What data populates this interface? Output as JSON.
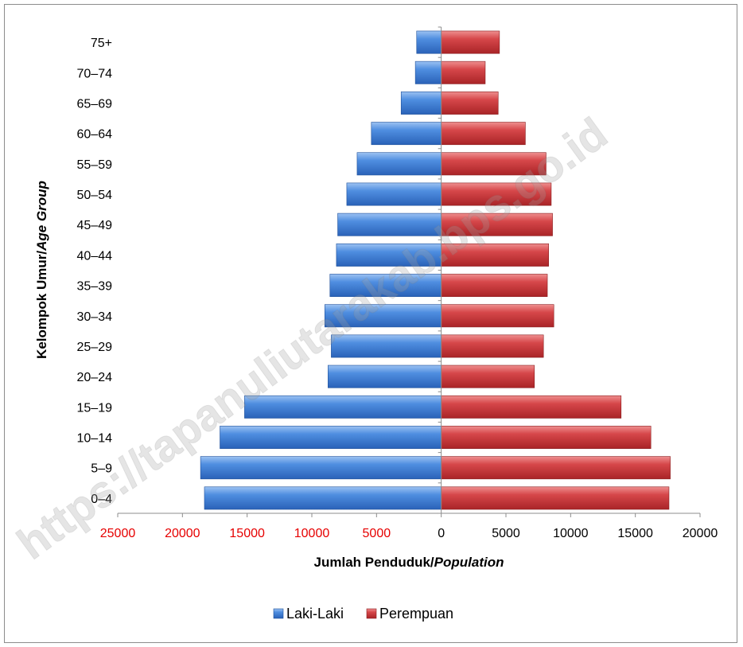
{
  "chart_data": {
    "type": "bar",
    "orientation": "horizontal-pyramid",
    "categories": [
      "0–4",
      "5–9",
      "10–14",
      "15–19",
      "20–24",
      "25–29",
      "30–34",
      "35–39",
      "40–44",
      "45–49",
      "50–54",
      "55–59",
      "60–64",
      "65–69",
      "70–74",
      "75+"
    ],
    "series": [
      {
        "name": "Laki-Laki",
        "color": "#3f7fd6",
        "values": [
          18300,
          18600,
          17100,
          15200,
          8750,
          8500,
          9000,
          8600,
          8100,
          8000,
          7300,
          6500,
          5400,
          3100,
          2000,
          1900
        ]
      },
      {
        "name": "Perempuan",
        "color": "#c9373a",
        "values": [
          17600,
          17700,
          16200,
          13900,
          7200,
          7900,
          8700,
          8200,
          8300,
          8600,
          8500,
          8100,
          6500,
          4400,
          3400,
          4500
        ]
      }
    ],
    "xlim": [
      -25000,
      20000
    ],
    "x_ticks": [
      -25000,
      -20000,
      -15000,
      -10000,
      -5000,
      0,
      5000,
      10000,
      15000,
      20000
    ],
    "x_tick_labels": [
      "25000",
      "20000",
      "15000",
      "10000",
      "5000",
      "0",
      "5000",
      "10000",
      "15000",
      "20000"
    ],
    "x_tick_colors": [
      "#e60000",
      "#e60000",
      "#e60000",
      "#e60000",
      "#e60000",
      "#000000",
      "#000000",
      "#000000",
      "#000000",
      "#000000"
    ],
    "xlabel_main": "Jumlah Penduduk/",
    "xlabel_italic": "Population",
    "ylabel_main": "Kelompok Umur/",
    "ylabel_italic": "Age Group",
    "legend_position": "bottom",
    "grid": false
  },
  "watermark": "https://tapanuliutarakab.bps.go.id"
}
